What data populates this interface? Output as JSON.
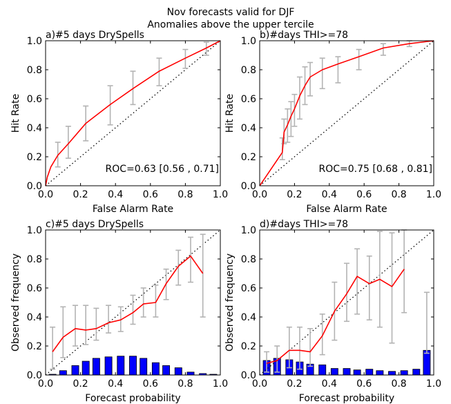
{
  "title_line1": "Nov forecasts valid for DJF",
  "title_line2": "Anomalies above the upper tercile",
  "colors": {
    "curve": "#ff0000",
    "error_bar": "#b3b3b3",
    "bar": "#0000ff",
    "diagonal": "#000000"
  },
  "chart_data": [
    {
      "type": "line",
      "panel": "roc",
      "title": "a)#5 days DrySpells",
      "xlabel": "False Alarm Rate",
      "ylabel": "Hit Rate",
      "xlim": [
        0,
        1
      ],
      "ylim": [
        0,
        1
      ],
      "xticks": [
        "0.0",
        "0.2",
        "0.4",
        "0.6",
        "0.8",
        "1.0"
      ],
      "yticks": [
        "0.0",
        "0.2",
        "0.4",
        "0.6",
        "0.8",
        "1.0"
      ],
      "grid": false,
      "diagonal_reference": true,
      "annotation": "ROC=0.63 [0.56 , 0.71]",
      "curve": {
        "x": [
          0,
          0.01,
          0.03,
          0.07,
          0.13,
          0.23,
          0.37,
          0.5,
          0.65,
          0.8,
          0.92,
          1.0
        ],
        "y": [
          0,
          0.06,
          0.13,
          0.21,
          0.29,
          0.43,
          0.56,
          0.67,
          0.79,
          0.88,
          0.95,
          1.0
        ]
      },
      "error_bars": {
        "x": [
          0.07,
          0.13,
          0.23,
          0.37,
          0.5,
          0.65,
          0.8,
          0.92
        ],
        "low": [
          0.13,
          0.19,
          0.31,
          0.42,
          0.56,
          0.69,
          0.81,
          0.9
        ],
        "high": [
          0.3,
          0.41,
          0.55,
          0.69,
          0.79,
          0.88,
          0.94,
          0.99
        ]
      }
    },
    {
      "type": "line",
      "panel": "roc",
      "title": "b)#days THI>=78",
      "xlabel": "False Alarm Rate",
      "ylabel": "Hit Rate",
      "xlim": [
        0,
        1
      ],
      "ylim": [
        0,
        1
      ],
      "xticks": [
        "0.0",
        "0.2",
        "0.4",
        "0.6",
        "0.8",
        "1.0"
      ],
      "yticks": [
        "0.0",
        "0.2",
        "0.4",
        "0.6",
        "0.8",
        "1.0"
      ],
      "grid": false,
      "diagonal_reference": true,
      "annotation": "ROC=0.75 [0.68 , 0.81]",
      "curve": {
        "x": [
          0,
          0.13,
          0.14,
          0.16,
          0.18,
          0.2,
          0.23,
          0.26,
          0.29,
          0.36,
          0.45,
          0.57,
          0.71,
          0.86,
          1.0
        ],
        "y": [
          0,
          0.23,
          0.37,
          0.42,
          0.48,
          0.53,
          0.62,
          0.69,
          0.75,
          0.8,
          0.84,
          0.89,
          0.95,
          0.98,
          1.0
        ]
      },
      "error_bars": {
        "x": [
          0.13,
          0.14,
          0.16,
          0.18,
          0.2,
          0.23,
          0.26,
          0.29,
          0.36,
          0.45,
          0.57,
          0.71,
          0.86
        ],
        "low": [
          0.18,
          0.29,
          0.3,
          0.34,
          0.41,
          0.46,
          0.56,
          0.62,
          0.67,
          0.71,
          0.8,
          0.9,
          0.96
        ],
        "high": [
          0.33,
          0.46,
          0.53,
          0.58,
          0.63,
          0.75,
          0.82,
          0.85,
          0.88,
          0.89,
          0.94,
          0.98,
          1.0
        ]
      }
    },
    {
      "type": "line",
      "panel": "reliability",
      "title": "c)#5 days DrySpells",
      "xlabel": "Forecast probability",
      "ylabel": "Observed frequency",
      "xlim": [
        0,
        1
      ],
      "ylim": [
        0,
        1
      ],
      "xticks": [
        "0.0",
        "0.2",
        "0.4",
        "0.6",
        "0.8",
        "1.0"
      ],
      "yticks": [
        "0.0",
        "0.2",
        "0.4",
        "0.6",
        "0.8",
        "1.0"
      ],
      "grid": false,
      "diagonal_reference": true,
      "curve": {
        "x": [
          0.04,
          0.1,
          0.17,
          0.23,
          0.29,
          0.36,
          0.43,
          0.5,
          0.56,
          0.63,
          0.69,
          0.76,
          0.83,
          0.9
        ],
        "y": [
          0.16,
          0.26,
          0.32,
          0.31,
          0.32,
          0.36,
          0.38,
          0.43,
          0.49,
          0.5,
          0.63,
          0.75,
          0.82,
          0.7
        ]
      },
      "error_bars": {
        "x": [
          0.04,
          0.1,
          0.17,
          0.23,
          0.29,
          0.36,
          0.43,
          0.5,
          0.56,
          0.63,
          0.69,
          0.76,
          0.83,
          0.9
        ],
        "low": [
          0.04,
          0.12,
          0.2,
          0.21,
          0.24,
          0.29,
          0.3,
          0.35,
          0.4,
          0.4,
          0.52,
          0.62,
          0.64,
          0.4
        ],
        "high": [
          0.33,
          0.47,
          0.48,
          0.48,
          0.46,
          0.48,
          0.47,
          0.55,
          0.6,
          0.62,
          0.73,
          0.86,
          0.95,
          0.97
        ]
      },
      "bars": {
        "x": [
          0.04,
          0.1,
          0.17,
          0.23,
          0.29,
          0.36,
          0.43,
          0.5,
          0.56,
          0.63,
          0.69,
          0.76,
          0.83,
          0.9,
          0.96
        ],
        "values": [
          0.005,
          0.03,
          0.065,
          0.095,
          0.115,
          0.125,
          0.13,
          0.13,
          0.115,
          0.085,
          0.065,
          0.05,
          0.02,
          0.01,
          0.005
        ]
      }
    },
    {
      "type": "line",
      "panel": "reliability",
      "title": "d)#days THI>=78",
      "xlabel": "Forecast probability",
      "ylabel": "Observed frequency",
      "xlim": [
        0,
        1
      ],
      "ylim": [
        0,
        1
      ],
      "xticks": [
        "0.0",
        "0.2",
        "0.4",
        "0.6",
        "0.8",
        "1.0"
      ],
      "yticks": [
        "0.0",
        "0.2",
        "0.4",
        "0.6",
        "0.8",
        "1.0"
      ],
      "grid": false,
      "diagonal_reference": true,
      "curve": {
        "x": [
          0.04,
          0.1,
          0.17,
          0.23,
          0.29,
          0.36,
          0.43,
          0.5,
          0.56,
          0.63,
          0.69,
          0.76,
          0.83
        ],
        "y": [
          0.08,
          0.1,
          0.17,
          0.17,
          0.16,
          0.27,
          0.44,
          0.56,
          0.68,
          0.63,
          0.66,
          0.61,
          0.73
        ]
      },
      "error_bars": {
        "x": [
          0.04,
          0.1,
          0.17,
          0.23,
          0.29,
          0.36,
          0.43,
          0.5,
          0.56,
          0.63,
          0.69,
          0.76,
          0.83,
          0.96
        ],
        "low": [
          0.02,
          0.02,
          0.05,
          0.04,
          0.06,
          0.14,
          0.24,
          0.37,
          0.42,
          0.38,
          0.33,
          0.22,
          0.43,
          0.15
        ],
        "high": [
          0.16,
          0.2,
          0.33,
          0.33,
          0.32,
          0.42,
          0.64,
          0.77,
          0.87,
          0.82,
          0.99,
          0.98,
          1.0,
          0.57
        ]
      },
      "bars": {
        "x": [
          0.04,
          0.1,
          0.17,
          0.23,
          0.29,
          0.36,
          0.43,
          0.5,
          0.56,
          0.63,
          0.69,
          0.76,
          0.83,
          0.9,
          0.96
        ],
        "values": [
          0.1,
          0.115,
          0.105,
          0.09,
          0.075,
          0.07,
          0.045,
          0.045,
          0.035,
          0.04,
          0.03,
          0.025,
          0.03,
          0.04,
          0.17
        ]
      }
    }
  ]
}
